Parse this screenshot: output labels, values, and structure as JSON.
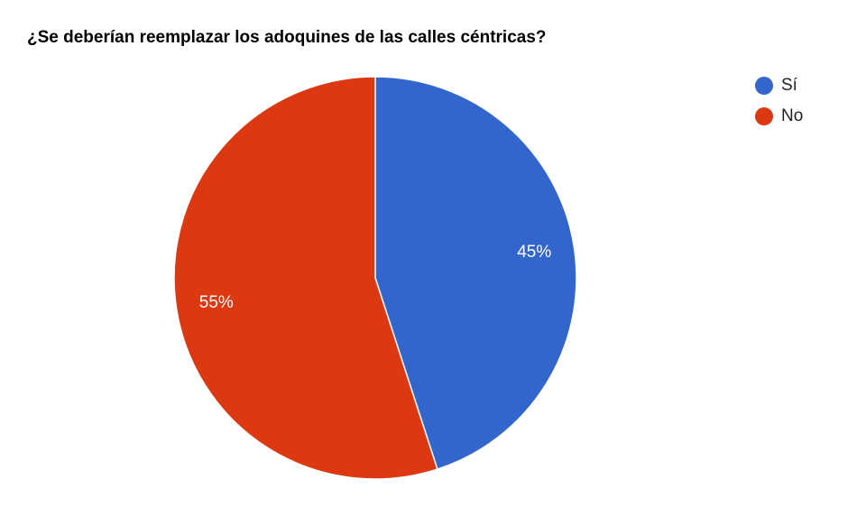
{
  "chart_data": {
    "type": "pie",
    "title": "¿Se deberían reemplazar los adoquines de las calles céntricas?",
    "categories": [
      "Sí",
      "No"
    ],
    "values": [
      45,
      55
    ],
    "value_labels": [
      "45%",
      "55%"
    ],
    "colors": [
      "#3366cc",
      "#dc3912"
    ],
    "legend": "right"
  }
}
